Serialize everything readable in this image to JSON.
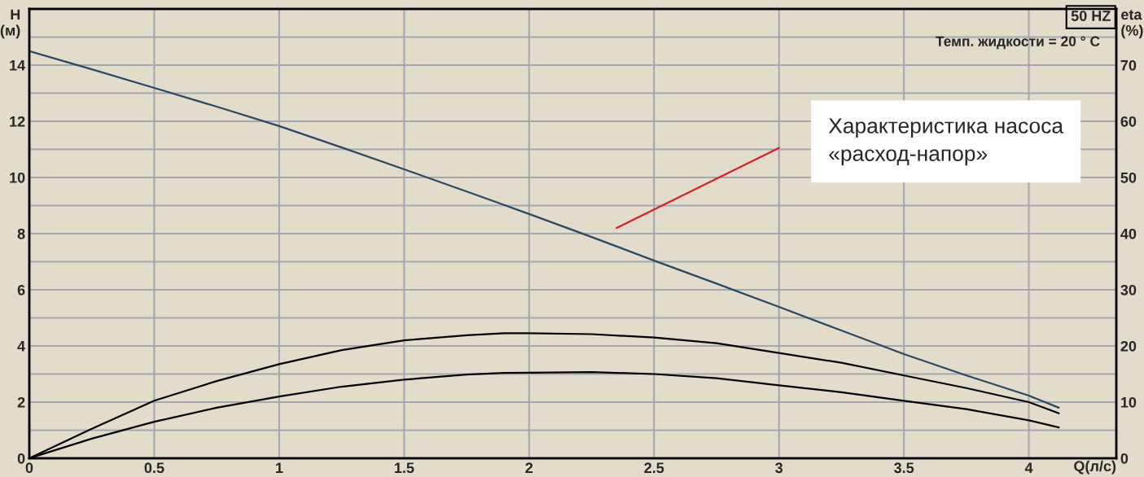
{
  "chart_data": {
    "type": "line",
    "xlabel": "Q(л/с)",
    "ylabel": "H\n(м)",
    "y2label": "eta\n(%)",
    "x": [
      0,
      0.25,
      0.5,
      0.75,
      1,
      1.25,
      1.5,
      1.75,
      1.9,
      2,
      2.25,
      2.5,
      2.75,
      3,
      3.25,
      3.5,
      3.75,
      4,
      4.12
    ],
    "series": [
      {
        "color": "#2b4862",
        "values": [
          14.5,
          13.85,
          13.19,
          12.52,
          11.83,
          11.07,
          10.29,
          9.5,
          9.02,
          8.7,
          7.88,
          7.04,
          6.22,
          5.39,
          4.55,
          3.71,
          2.95,
          2.23,
          1.8
        ]
      },
      {
        "color": "#000000",
        "values": [
          0,
          1.05,
          2.05,
          2.75,
          3.35,
          3.85,
          4.2,
          4.38,
          4.45,
          4.45,
          4.42,
          4.3,
          4.1,
          3.75,
          3.4,
          2.95,
          2.5,
          2.0,
          1.6
        ]
      },
      {
        "color": "#d42027",
        "x": [
          2.35,
          3.0
        ],
        "values": [
          8.2,
          11.05
        ]
      },
      {
        "color": "#000000",
        "values": [
          0,
          0.7,
          1.3,
          1.8,
          2.2,
          2.55,
          2.8,
          2.98,
          3.04,
          3.05,
          3.07,
          3.0,
          2.85,
          2.6,
          2.35,
          2.05,
          1.75,
          1.35,
          1.1
        ]
      }
    ],
    "xlim": [
      0,
      4.35
    ],
    "ylim": [
      0,
      16
    ],
    "y2lim": [
      0,
      80
    ],
    "xticks": [
      0,
      0.5,
      1,
      1.5,
      2,
      2.5,
      3,
      3.5,
      4
    ],
    "yticks": [
      0,
      {
        "value": 1,
        "label": null
      },
      2,
      {
        "value": 3,
        "label": null
      },
      4,
      {
        "value": 5,
        "label": null
      },
      6,
      {
        "value": 7,
        "label": null
      },
      8,
      {
        "value": 9,
        "label": null
      },
      10,
      {
        "value": 11,
        "label": null
      },
      12,
      {
        "value": 13,
        "label": null
      },
      14,
      {
        "value": 15,
        "label": null
      }
    ],
    "y2ticks": [
      0,
      10,
      20,
      30,
      40,
      50,
      60,
      70
    ],
    "grid": true,
    "marker": "none",
    "line_style": "solid",
    "legend": false,
    "annotations": [
      "50 HZ",
      "Темп. жидкости = 20 ° C",
      "Характеристика насоса\n«расход-напор»"
    ]
  }
}
